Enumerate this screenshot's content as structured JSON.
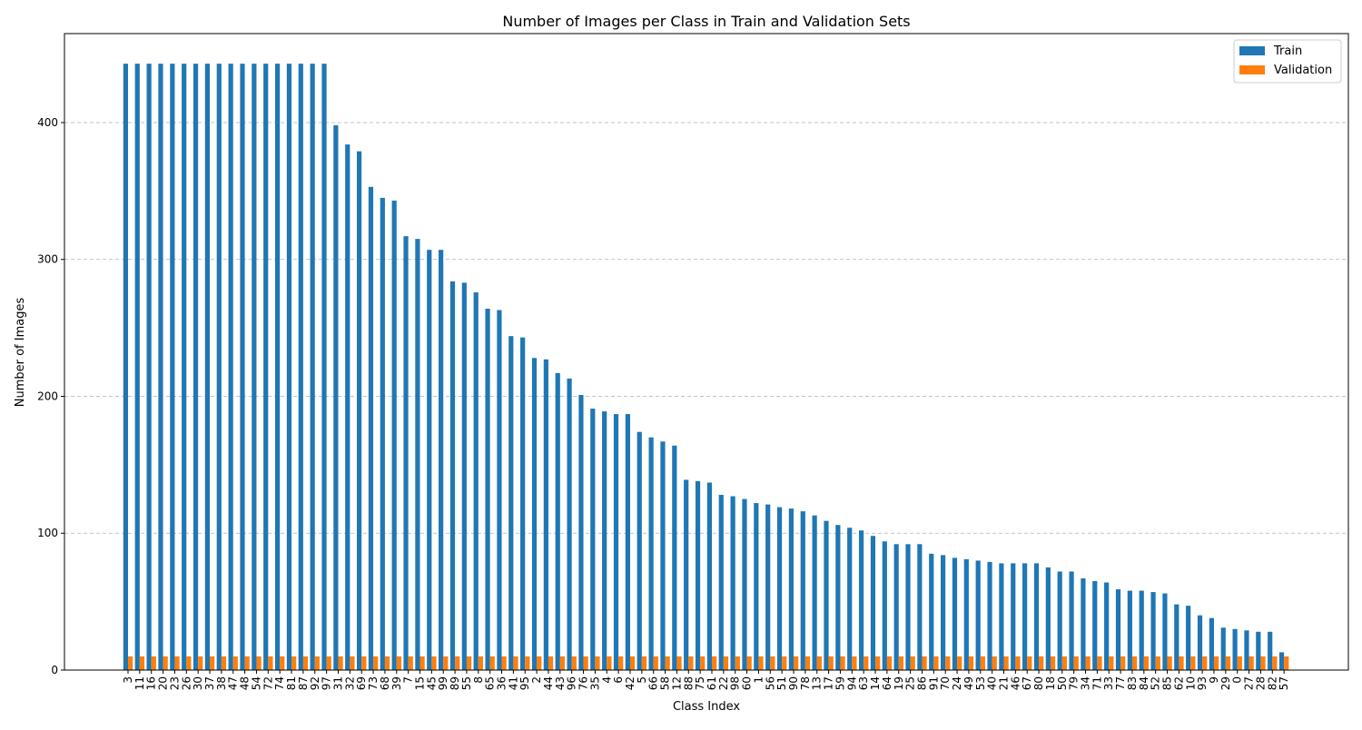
{
  "chart_data": {
    "type": "bar",
    "title": "Number of Images per Class in Train and Validation Sets",
    "xlabel": "Class Index",
    "ylabel": "Number of Images",
    "ylim": [
      0,
      465
    ],
    "yticks": [
      0,
      100,
      200,
      300,
      400
    ],
    "grid": "y dashed",
    "legend_position": "top-right",
    "categories": [
      "3",
      "11",
      "16",
      "20",
      "23",
      "26",
      "30",
      "37",
      "38",
      "47",
      "48",
      "54",
      "72",
      "74",
      "81",
      "87",
      "92",
      "97",
      "31",
      "32",
      "69",
      "73",
      "68",
      "39",
      "7",
      "15",
      "45",
      "99",
      "89",
      "55",
      "8",
      "65",
      "36",
      "41",
      "95",
      "2",
      "44",
      "43",
      "96",
      "76",
      "35",
      "4",
      "6",
      "42",
      "5",
      "66",
      "58",
      "12",
      "88",
      "75",
      "61",
      "22",
      "98",
      "60",
      "1",
      "56",
      "51",
      "90",
      "78",
      "13",
      "17",
      "59",
      "94",
      "63",
      "14",
      "64",
      "19",
      "25",
      "86",
      "91",
      "70",
      "24",
      "49",
      "53",
      "40",
      "21",
      "46",
      "67",
      "80",
      "18",
      "50",
      "79",
      "34",
      "71",
      "33",
      "77",
      "83",
      "84",
      "52",
      "85",
      "62",
      "10",
      "93",
      "9",
      "29",
      "0",
      "27",
      "28",
      "82",
      "57"
    ],
    "series": [
      {
        "name": "Train",
        "color": "#1f77b4",
        "values": [
          443,
          443,
          443,
          443,
          443,
          443,
          443,
          443,
          443,
          443,
          443,
          443,
          443,
          443,
          443,
          443,
          443,
          443,
          398,
          384,
          379,
          353,
          345,
          343,
          317,
          315,
          307,
          307,
          284,
          283,
          276,
          264,
          263,
          244,
          243,
          228,
          227,
          217,
          213,
          201,
          191,
          189,
          187,
          187,
          174,
          170,
          167,
          164,
          139,
          138,
          137,
          128,
          127,
          125,
          122,
          121,
          119,
          118,
          116,
          113,
          109,
          106,
          104,
          102,
          98,
          94,
          92,
          92,
          92,
          85,
          84,
          82,
          81,
          80,
          79,
          78,
          78,
          78,
          78,
          75,
          72,
          72,
          67,
          65,
          64,
          59,
          58,
          58,
          57,
          56,
          48,
          47,
          40,
          38,
          31,
          30,
          29,
          28,
          28,
          13
        ]
      },
      {
        "name": "Validation",
        "color": "#ff7f0e",
        "values": [
          10,
          10,
          10,
          10,
          10,
          10,
          10,
          10,
          10,
          10,
          10,
          10,
          10,
          10,
          10,
          10,
          10,
          10,
          10,
          10,
          10,
          10,
          10,
          10,
          10,
          10,
          10,
          10,
          10,
          10,
          10,
          10,
          10,
          10,
          10,
          10,
          10,
          10,
          10,
          10,
          10,
          10,
          10,
          10,
          10,
          10,
          10,
          10,
          10,
          10,
          10,
          10,
          10,
          10,
          10,
          10,
          10,
          10,
          10,
          10,
          10,
          10,
          10,
          10,
          10,
          10,
          10,
          10,
          10,
          10,
          10,
          10,
          10,
          10,
          10,
          10,
          10,
          10,
          10,
          10,
          10,
          10,
          10,
          10,
          10,
          10,
          10,
          10,
          10,
          10,
          10,
          10,
          10,
          10,
          10,
          10,
          10,
          10,
          10,
          10
        ]
      }
    ]
  }
}
